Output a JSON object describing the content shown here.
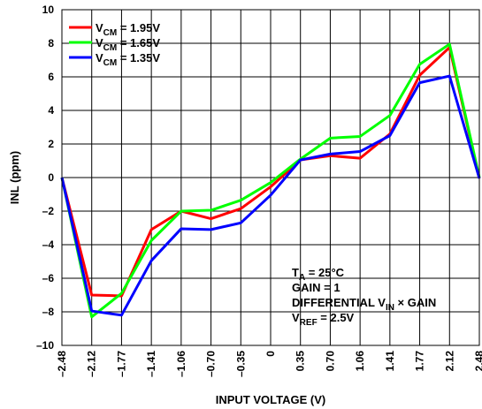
{
  "chart_data": {
    "type": "line",
    "xlabel": "INPUT VOLTAGE (V)",
    "ylabel": "INL (ppm)",
    "ylim": [
      -10,
      10
    ],
    "yticks": [
      -10,
      -8,
      -6,
      -4,
      -2,
      0,
      2,
      4,
      6,
      8,
      10
    ],
    "ytick_labels": [
      "–10",
      "–8",
      "–6",
      "–4",
      "–2",
      "0",
      "2",
      "4",
      "6",
      "8",
      "10"
    ],
    "x": [
      -2.48,
      -2.12,
      -1.77,
      -1.41,
      -1.06,
      -0.7,
      -0.35,
      0,
      0.35,
      0.7,
      1.06,
      1.41,
      1.77,
      2.12,
      2.48
    ],
    "xtick_labels": [
      "–2.48",
      "–2.12",
      "–1.77",
      "–1.41",
      "–1.06",
      "–0.70",
      "–0.35",
      "0",
      "0.35",
      "0.70",
      "1.06",
      "1.41",
      "1.77",
      "2.12",
      "2.48"
    ],
    "grid": true,
    "legend_position": "top-left",
    "series": [
      {
        "name_main": "V",
        "name_sub": "CM",
        "name_rest": " = 1.95V",
        "color": "#ff0000",
        "values": [
          0,
          -7.0,
          -7.05,
          -3.1,
          -2.0,
          -2.45,
          -1.85,
          -0.55,
          1.05,
          1.3,
          1.15,
          2.6,
          6.1,
          7.75,
          -0.05
        ]
      },
      {
        "name_main": "V",
        "name_sub": "CM",
        "name_rest": " = 1.65V",
        "color": "#00ff00",
        "values": [
          0,
          -8.3,
          -6.9,
          -3.75,
          -2.0,
          -1.95,
          -1.35,
          -0.3,
          1.1,
          2.35,
          2.45,
          3.7,
          6.75,
          7.95,
          0
        ]
      },
      {
        "name_main": "V",
        "name_sub": "CM",
        "name_rest": " = 1.35V",
        "color": "#0000ff",
        "values": [
          0,
          -7.95,
          -8.2,
          -4.95,
          -3.05,
          -3.1,
          -2.7,
          -1.05,
          1.05,
          1.4,
          1.55,
          2.5,
          5.65,
          6.05,
          -0.05
        ]
      }
    ],
    "annotations": [
      {
        "main": "T",
        "sub": "A",
        "rest": " = 25°C"
      },
      {
        "main": "GAIN = 1",
        "sub": "",
        "rest": ""
      },
      {
        "main": "DIFFERENTIAL V",
        "sub": "IN",
        "rest": " × GAIN"
      },
      {
        "main": "V",
        "sub": "REF",
        "rest": " = 2.5V"
      }
    ]
  }
}
